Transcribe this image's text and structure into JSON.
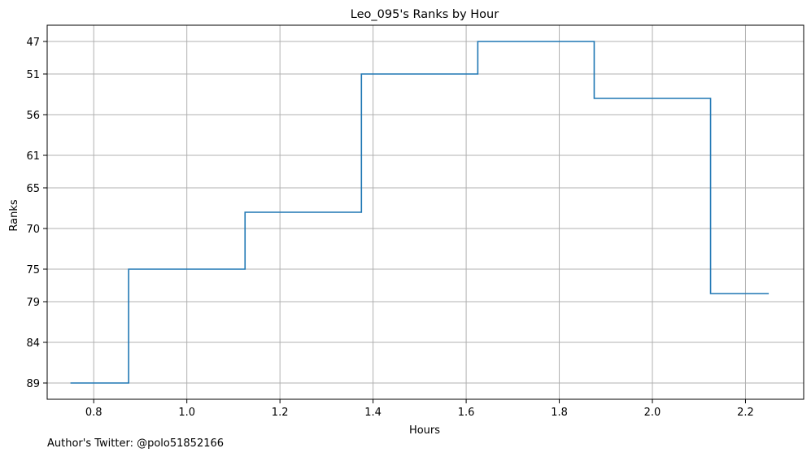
{
  "chart_data": {
    "type": "line",
    "drawstyle": "steps-mid",
    "title": "Leo_095's Ranks by Hour",
    "xlabel": "Hours",
    "ylabel": "Ranks",
    "x": [
      0.75,
      1.0,
      1.25,
      1.5,
      1.75,
      2.0,
      2.25
    ],
    "series": [
      {
        "values": [
          89,
          75,
          68,
          51,
          47,
          54,
          78
        ]
      }
    ],
    "xlim": [
      0.7,
      2.325
    ],
    "ylim": [
      91,
      45
    ],
    "y_inverted": true,
    "xticks": [
      "0.8",
      "1.0",
      "1.2",
      "1.4",
      "1.6",
      "1.8",
      "2.0",
      "2.2"
    ],
    "yticks": [
      "47",
      "51",
      "56",
      "61",
      "65",
      "70",
      "75",
      "79",
      "84",
      "89"
    ],
    "grid": true,
    "line_color": "#1f77b4"
  },
  "footer": {
    "text": "Author's Twitter: @polo51852166"
  }
}
